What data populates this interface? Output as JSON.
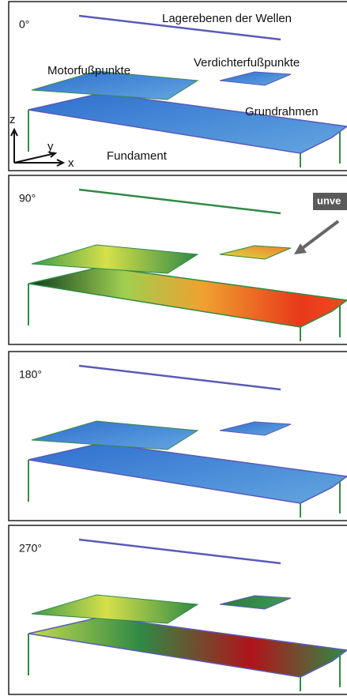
{
  "panels": [
    {
      "angle": "0°",
      "labels": {
        "shafts": "Lagerebenen der Wellen",
        "motor": "Motorfußpunkte",
        "compressor": "Verdichterfußpunkte",
        "frame": "Grundrahmen",
        "foundation": "Fundament"
      },
      "axes": {
        "z": "z",
        "y": "y",
        "x": "x"
      }
    },
    {
      "angle": "90°",
      "callout": "unve"
    },
    {
      "angle": "180°"
    },
    {
      "angle": "270°"
    }
  ]
}
